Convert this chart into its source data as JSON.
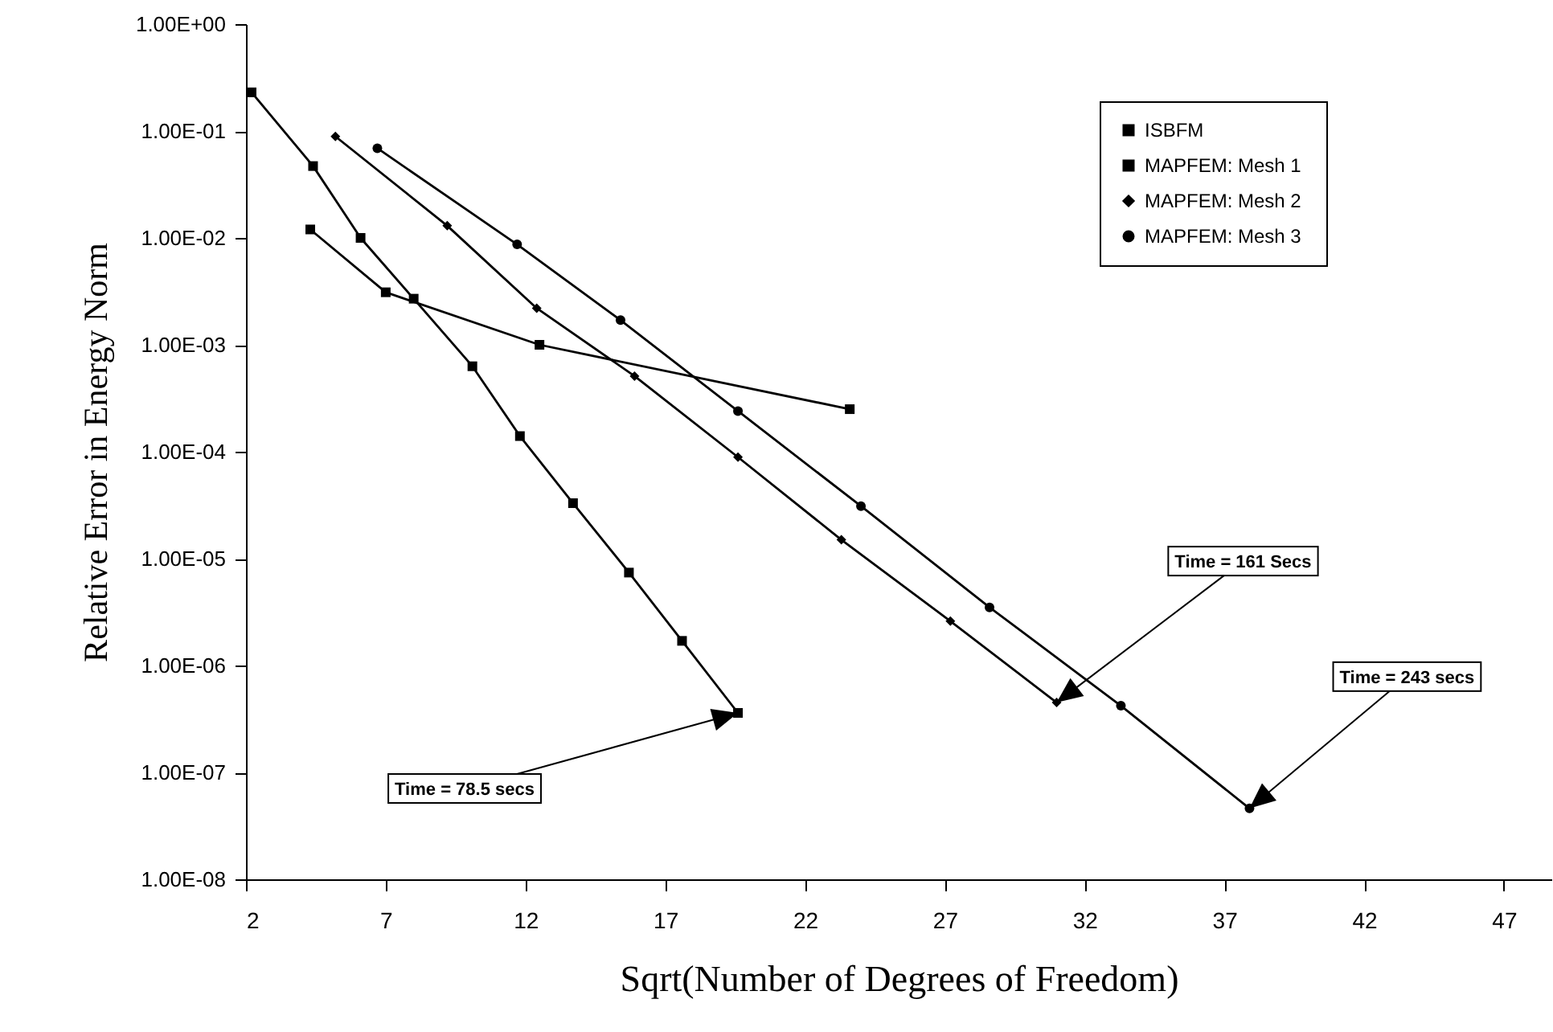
{
  "chart_data": {
    "type": "line",
    "xlabel": "Sqrt(Number of Degrees of Freedom)",
    "ylabel": "Relative Error in Energy Norm",
    "xlim": [
      2,
      48.7
    ],
    "xticks": [
      2,
      7,
      12,
      17,
      22,
      27,
      32,
      37,
      42,
      47
    ],
    "ylim": [
      1e-08,
      1
    ],
    "yticks": [
      {
        "value": 1e-08,
        "label": "1.00E-08"
      },
      {
        "value": 1e-07,
        "label": "1.00E-07"
      },
      {
        "value": 1e-06,
        "label": "1.00E-06"
      },
      {
        "value": 1e-05,
        "label": "1.00E-05"
      },
      {
        "value": 0.0001,
        "label": "1.00E-04"
      },
      {
        "value": 0.001,
        "label": "1.00E-03"
      },
      {
        "value": 0.01,
        "label": "1.00E-02"
      },
      {
        "value": 0.1,
        "label": "1.00E-01"
      },
      {
        "value": 1,
        "label": "1.00E+00"
      }
    ],
    "log": "y",
    "grid": false,
    "legend": "top right",
    "annotations": [
      {
        "text": "Time = 78.5 secs",
        "x": 19.6,
        "y": 3.6e-07
      },
      {
        "text": "Time = 161 Secs",
        "x": 31.0,
        "y": 4.5e-07
      },
      {
        "text": "Time = 243 secs",
        "x": 37.9,
        "y": 4.6e-08
      }
    ],
    "series": [
      {
        "name": "ISBFM",
        "color": "#000000",
        "marker": "square",
        "x": [
          4.3,
          7.0,
          12.5,
          23.6
        ],
        "values": [
          0.012,
          0.0031,
          0.001,
          0.00025
        ]
      },
      {
        "name": "MAPFEM:  Mesh 1",
        "color": "#000000",
        "marker": "square",
        "x": [
          2.2,
          4.4,
          6.1,
          8.0,
          10.1,
          11.8,
          13.7,
          15.7,
          17.6,
          19.6
        ],
        "values": [
          0.23,
          0.047,
          0.01,
          0.0027,
          0.00063,
          0.00014,
          3.3e-05,
          7.4e-06,
          1.7e-06,
          3.6e-07
        ]
      },
      {
        "name": "MAPFEM:  Mesh 2",
        "color": "#000000",
        "marker": "diamond",
        "x": [
          5.2,
          9.2,
          12.4,
          15.9,
          19.6,
          23.3,
          27.2,
          31.0
        ],
        "values": [
          0.089,
          0.013,
          0.0022,
          0.00051,
          8.9e-05,
          1.5e-05,
          2.6e-06,
          4.5e-07
        ]
      },
      {
        "name": "MAPFEM:  Mesh 3",
        "color": "#000000",
        "marker": "circle",
        "x": [
          6.7,
          11.7,
          15.4,
          19.6,
          24.0,
          28.6,
          33.3,
          37.9
        ],
        "values": [
          0.069,
          0.0087,
          0.0017,
          0.00024,
          3.1e-05,
          3.5e-06,
          4.2e-07,
          4.6e-08
        ]
      }
    ]
  }
}
